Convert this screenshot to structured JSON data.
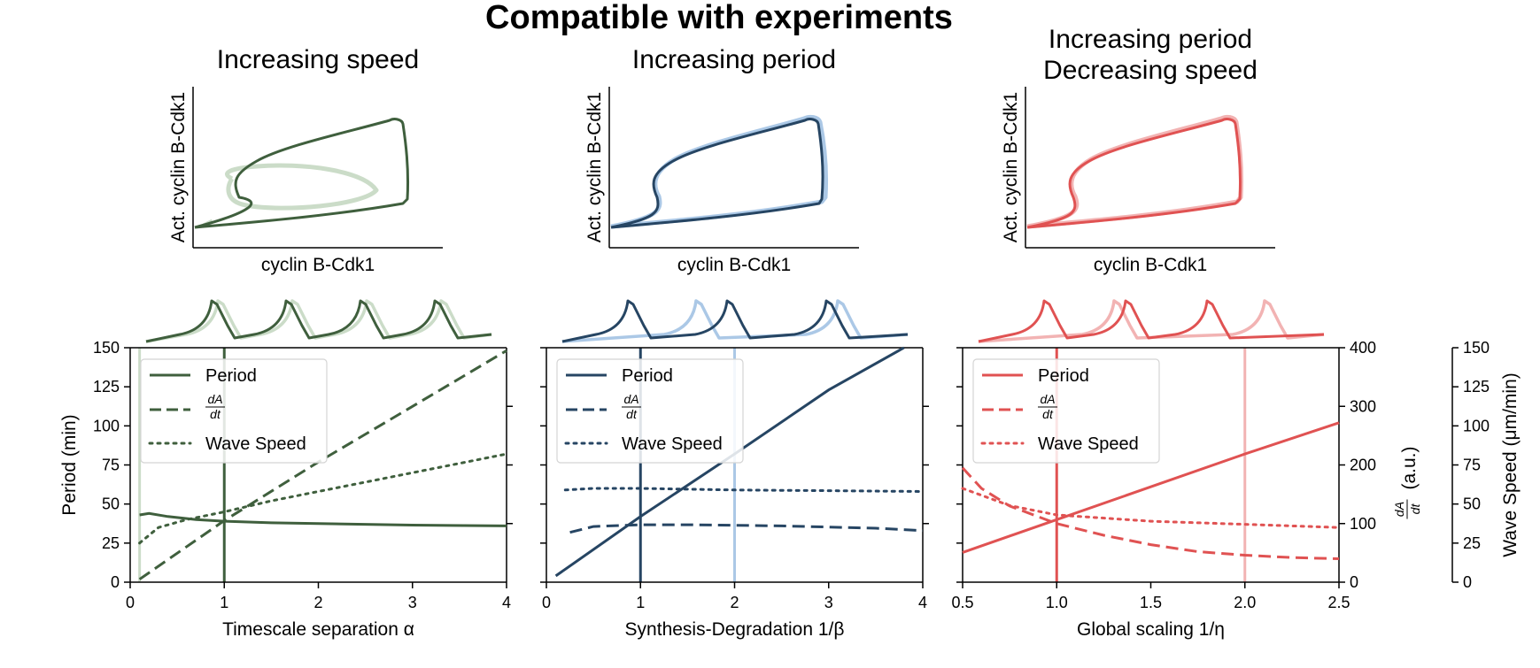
{
  "figure": {
    "title": "Compatible with experiments",
    "colors": {
      "green_dark": "#3f5f3d",
      "green_light": "#cbdcc8",
      "blue_dark": "#264563",
      "blue_light": "#abc8e6",
      "red_dark": "#e05252",
      "red_light": "#f2b3b3"
    }
  },
  "phase_panels": [
    {
      "title_lines": [
        "Increasing speed"
      ],
      "xlabel": "cyclin B-Cdk1",
      "ylabel": "Act. cyclin B-Cdk1",
      "dark": "green_dark",
      "light": "green_light"
    },
    {
      "title_lines": [
        "Increasing period"
      ],
      "xlabel": "cyclin B-Cdk1",
      "ylabel": "Act. cyclin B-Cdk1",
      "dark": "blue_dark",
      "light": "blue_light"
    },
    {
      "title_lines": [
        "Increasing period",
        "Decreasing speed"
      ],
      "xlabel": "cyclin B-Cdk1",
      "ylabel": "Act. cyclin B-Cdk1",
      "dark": "red_dark",
      "light": "red_light"
    }
  ],
  "right_axes": {
    "dadt": {
      "label_suffix": "(a.u.)",
      "ticks": [
        "0",
        "100",
        "200",
        "300",
        "400"
      ],
      "ylim": [
        0,
        400
      ]
    },
    "speed": {
      "label": "Wave Speed (μm/min)",
      "ticks": [
        "0",
        "25",
        "50",
        "75",
        "100",
        "125",
        "150"
      ],
      "ylim": [
        0,
        150
      ]
    }
  },
  "chart_data": [
    {
      "type": "line",
      "xlabel": "Timescale separation α",
      "ylabel": "Period (min)",
      "xlim": [
        0,
        4
      ],
      "ylim": [
        0,
        150
      ],
      "xticks": [
        "0",
        "1",
        "2",
        "3",
        "4"
      ],
      "yticks": [
        "0",
        "25",
        "50",
        "75",
        "100",
        "125",
        "150"
      ],
      "vlines": [
        {
          "x": 1,
          "color": "green_dark"
        },
        {
          "x": 0.1,
          "color": "green_light"
        }
      ],
      "color": "green_dark",
      "legend": [
        "Period",
        "Wave Speed"
      ],
      "series": [
        {
          "name": "Period",
          "axis": "period",
          "style": "solid",
          "x": [
            0.1,
            0.2,
            0.4,
            0.7,
            1,
            1.5,
            2,
            3,
            4
          ],
          "y": [
            43,
            44,
            42,
            40,
            39,
            38,
            37.5,
            36.5,
            36
          ]
        },
        {
          "name": "dA/dt",
          "axis": "dadt",
          "style": "dashed",
          "x": [
            0.1,
            1,
            2,
            3,
            4
          ],
          "y": [
            5,
            105,
            205,
            300,
            395
          ]
        },
        {
          "name": "Wave Speed",
          "axis": "speed",
          "style": "dotted",
          "x": [
            0.1,
            0.3,
            0.6,
            1,
            1.5,
            2,
            3,
            4
          ],
          "y": [
            25,
            35,
            40,
            45,
            52,
            58,
            70,
            82
          ]
        }
      ]
    },
    {
      "type": "line",
      "xlabel": "Synthesis-Degradation 1/β",
      "ylabel": "",
      "xlim": [
        0,
        4
      ],
      "ylim": [
        0,
        150
      ],
      "xticks": [
        "0",
        "1",
        "2",
        "3",
        "4"
      ],
      "yticks": [],
      "vlines": [
        {
          "x": 1,
          "color": "blue_dark"
        },
        {
          "x": 2,
          "color": "blue_light"
        }
      ],
      "color": "blue_dark",
      "legend": [
        "Period",
        "Wave Speed"
      ],
      "series": [
        {
          "name": "Period",
          "axis": "period",
          "style": "solid",
          "x": [
            0.1,
            1,
            2,
            3,
            3.8
          ],
          "y": [
            4,
            42,
            82,
            123,
            150
          ]
        },
        {
          "name": "dA/dt",
          "axis": "dadt",
          "style": "dashed",
          "x": [
            0.25,
            0.5,
            1,
            1.5,
            2,
            2.5,
            3,
            3.5,
            4
          ],
          "y": [
            85,
            95,
            98,
            98,
            97,
            96,
            94,
            92,
            88
          ]
        },
        {
          "name": "Wave Speed",
          "axis": "speed",
          "style": "dotted",
          "x": [
            0.2,
            0.5,
            1,
            2,
            3,
            4
          ],
          "y": [
            59,
            60,
            60,
            59,
            58.5,
            58
          ]
        }
      ]
    },
    {
      "type": "line",
      "xlabel": "Global scaling 1/η",
      "ylabel": "",
      "xlim": [
        0.5,
        2.5
      ],
      "ylim": [
        0,
        150
      ],
      "xticks": [
        "0.5",
        "1.0",
        "1.5",
        "2.0",
        "2.5"
      ],
      "yticks": [],
      "vlines": [
        {
          "x": 1.0,
          "color": "red_dark"
        },
        {
          "x": 2.0,
          "color": "red_light"
        }
      ],
      "color": "red_dark",
      "legend": [
        "Period",
        "Wave Speed"
      ],
      "series": [
        {
          "name": "Period",
          "axis": "period",
          "style": "solid",
          "x": [
            0.5,
            1.0,
            1.5,
            2.0,
            2.5
          ],
          "y": [
            19,
            40,
            61,
            82,
            102
          ]
        },
        {
          "name": "dA/dt",
          "axis": "dadt",
          "style": "dashed",
          "x": [
            0.5,
            0.6,
            0.75,
            1.0,
            1.25,
            1.5,
            1.75,
            2.0,
            2.25,
            2.5
          ],
          "y": [
            195,
            160,
            130,
            100,
            80,
            64,
            52,
            46,
            42,
            40
          ]
        },
        {
          "name": "Wave Speed",
          "axis": "speed",
          "style": "dotted",
          "x": [
            0.5,
            0.75,
            1.0,
            1.5,
            2.0,
            2.5
          ],
          "y": [
            60,
            49,
            43,
            39,
            37,
            35
          ]
        }
      ]
    }
  ]
}
